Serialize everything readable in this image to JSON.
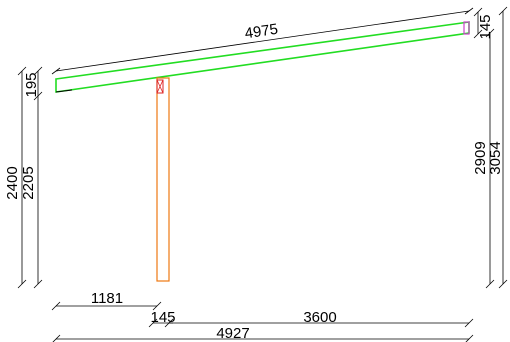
{
  "drawing": {
    "colors": {
      "beam": "#22dd22",
      "post": "#ee7711",
      "connector": "#dd2222",
      "end_plate": "#cc44cc",
      "dimension": "#000000",
      "background": "#ffffff"
    },
    "dimensions": {
      "beam_length": "4975",
      "beam_height_right": "145",
      "beam_height_left": "195",
      "height_outer_left": "2400",
      "height_inner_left": "2205",
      "height_inner_right": "2909",
      "height_outer_right": "3054",
      "overhang_left": "1181",
      "post_width": "145",
      "span": "3600",
      "total_length": "4927"
    }
  }
}
